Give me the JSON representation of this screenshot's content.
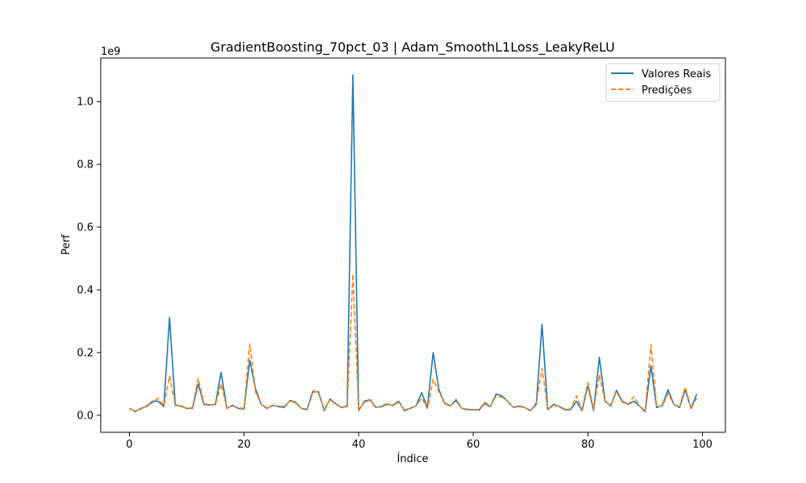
{
  "chart_data": {
    "type": "line",
    "title": "GradientBoosting_70pct_03 | Adam_SmoothL1Loss_LeakyReLU",
    "xlabel": "Índice",
    "ylabel": "Perf",
    "y_offset_label": "1e9",
    "xlim": [
      -5,
      104
    ],
    "ylim": [
      -0.054,
      1.139
    ],
    "xticks": [
      0,
      20,
      40,
      60,
      80,
      100
    ],
    "xtick_labels": [
      "0",
      "20",
      "40",
      "60",
      "80",
      "100"
    ],
    "yticks": [
      0.0,
      0.2,
      0.4,
      0.6,
      0.8,
      1.0
    ],
    "ytick_labels": [
      "0.0",
      "0.2",
      "0.4",
      "0.6",
      "0.8",
      "1.0"
    ],
    "grid": false,
    "legend_position": "top-right",
    "series": [
      {
        "name": "Valores Reais",
        "color": "#1f77b4",
        "style": "solid",
        "values": [
          0.022,
          0.012,
          0.022,
          0.028,
          0.045,
          0.045,
          0.028,
          0.312,
          0.032,
          0.03,
          0.022,
          0.022,
          0.1,
          0.035,
          0.033,
          0.035,
          0.137,
          0.022,
          0.032,
          0.022,
          0.02,
          0.175,
          0.085,
          0.035,
          0.022,
          0.032,
          0.028,
          0.025,
          0.047,
          0.042,
          0.022,
          0.018,
          0.075,
          0.075,
          0.015,
          0.052,
          0.037,
          0.025,
          0.03,
          1.085,
          0.015,
          0.045,
          0.05,
          0.025,
          0.028,
          0.035,
          0.032,
          0.045,
          0.015,
          0.022,
          0.03,
          0.072,
          0.025,
          0.2,
          0.082,
          0.038,
          0.03,
          0.05,
          0.022,
          0.018,
          0.018,
          0.017,
          0.038,
          0.028,
          0.068,
          0.062,
          0.045,
          0.025,
          0.03,
          0.025,
          0.015,
          0.035,
          0.29,
          0.018,
          0.035,
          0.028,
          0.018,
          0.018,
          0.045,
          0.015,
          0.095,
          0.015,
          0.185,
          0.045,
          0.03,
          0.08,
          0.045,
          0.035,
          0.045,
          0.03,
          0.012,
          0.158,
          0.025,
          0.032,
          0.082,
          0.035,
          0.025,
          0.082,
          0.022,
          0.068
        ]
      },
      {
        "name": "Predições",
        "color": "#ff7f0e",
        "style": "dashed",
        "values": [
          0.02,
          0.014,
          0.02,
          0.03,
          0.04,
          0.055,
          0.03,
          0.125,
          0.035,
          0.028,
          0.022,
          0.024,
          0.118,
          0.038,
          0.032,
          0.034,
          0.1,
          0.024,
          0.03,
          0.024,
          0.022,
          0.228,
          0.075,
          0.035,
          0.024,
          0.03,
          0.03,
          0.028,
          0.045,
          0.04,
          0.022,
          0.02,
          0.08,
          0.07,
          0.018,
          0.05,
          0.035,
          0.025,
          0.028,
          0.45,
          0.018,
          0.042,
          0.048,
          0.025,
          0.03,
          0.038,
          0.03,
          0.042,
          0.018,
          0.022,
          0.03,
          0.055,
          0.022,
          0.115,
          0.075,
          0.04,
          0.03,
          0.045,
          0.022,
          0.02,
          0.018,
          0.018,
          0.042,
          0.03,
          0.062,
          0.058,
          0.045,
          0.025,
          0.028,
          0.025,
          0.015,
          0.04,
          0.15,
          0.02,
          0.03,
          0.03,
          0.02,
          0.02,
          0.062,
          0.018,
          0.105,
          0.018,
          0.13,
          0.045,
          0.032,
          0.075,
          0.042,
          0.035,
          0.06,
          0.03,
          0.015,
          0.225,
          0.028,
          0.03,
          0.07,
          0.035,
          0.028,
          0.09,
          0.022,
          0.055
        ]
      }
    ]
  }
}
